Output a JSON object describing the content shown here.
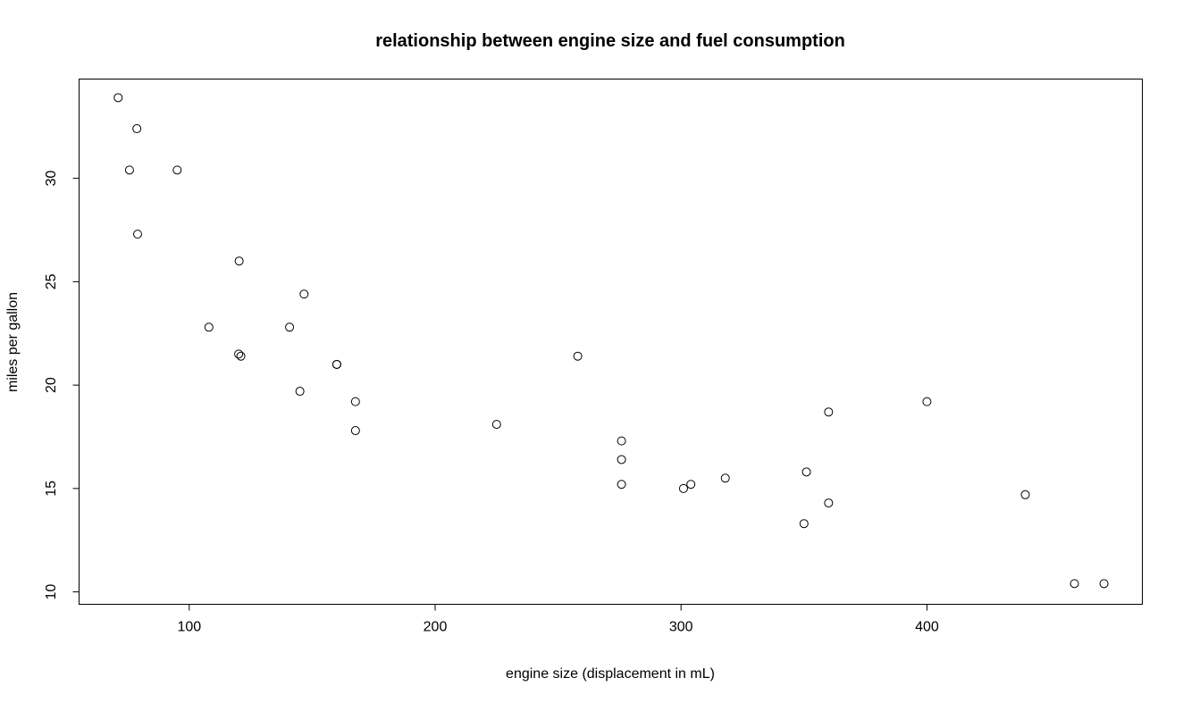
{
  "chart_data": {
    "type": "scatter",
    "title": "relationship between engine size and fuel consumption",
    "xlabel": "engine size (displacement in mL)",
    "ylabel": "miles per gallon",
    "xlim": [
      55.2,
      487.6
    ],
    "ylim": [
      9.4,
      34.8
    ],
    "x_ticks": [
      100,
      200,
      300,
      400
    ],
    "y_ticks": [
      10,
      15,
      20,
      25,
      30
    ],
    "grid": false,
    "legend": "none",
    "points": [
      {
        "x": 160,
        "y": 21.0
      },
      {
        "x": 160,
        "y": 21.0
      },
      {
        "x": 108,
        "y": 22.8
      },
      {
        "x": 258,
        "y": 21.4
      },
      {
        "x": 360,
        "y": 18.7
      },
      {
        "x": 225,
        "y": 18.1
      },
      {
        "x": 360,
        "y": 14.3
      },
      {
        "x": 146.7,
        "y": 24.4
      },
      {
        "x": 140.8,
        "y": 22.8
      },
      {
        "x": 167.6,
        "y": 19.2
      },
      {
        "x": 167.6,
        "y": 17.8
      },
      {
        "x": 275.8,
        "y": 16.4
      },
      {
        "x": 275.8,
        "y": 17.3
      },
      {
        "x": 275.8,
        "y": 15.2
      },
      {
        "x": 472,
        "y": 10.4
      },
      {
        "x": 460,
        "y": 10.4
      },
      {
        "x": 440,
        "y": 14.7
      },
      {
        "x": 78.7,
        "y": 32.4
      },
      {
        "x": 75.7,
        "y": 30.4
      },
      {
        "x": 71.1,
        "y": 33.9
      },
      {
        "x": 120.1,
        "y": 21.5
      },
      {
        "x": 318,
        "y": 15.5
      },
      {
        "x": 304,
        "y": 15.2
      },
      {
        "x": 350,
        "y": 13.3
      },
      {
        "x": 400,
        "y": 19.2
      },
      {
        "x": 79,
        "y": 27.3
      },
      {
        "x": 120.3,
        "y": 26.0
      },
      {
        "x": 95.1,
        "y": 30.4
      },
      {
        "x": 351,
        "y": 15.8
      },
      {
        "x": 145,
        "y": 19.7
      },
      {
        "x": 301,
        "y": 15.0
      },
      {
        "x": 121,
        "y": 21.4
      }
    ]
  }
}
